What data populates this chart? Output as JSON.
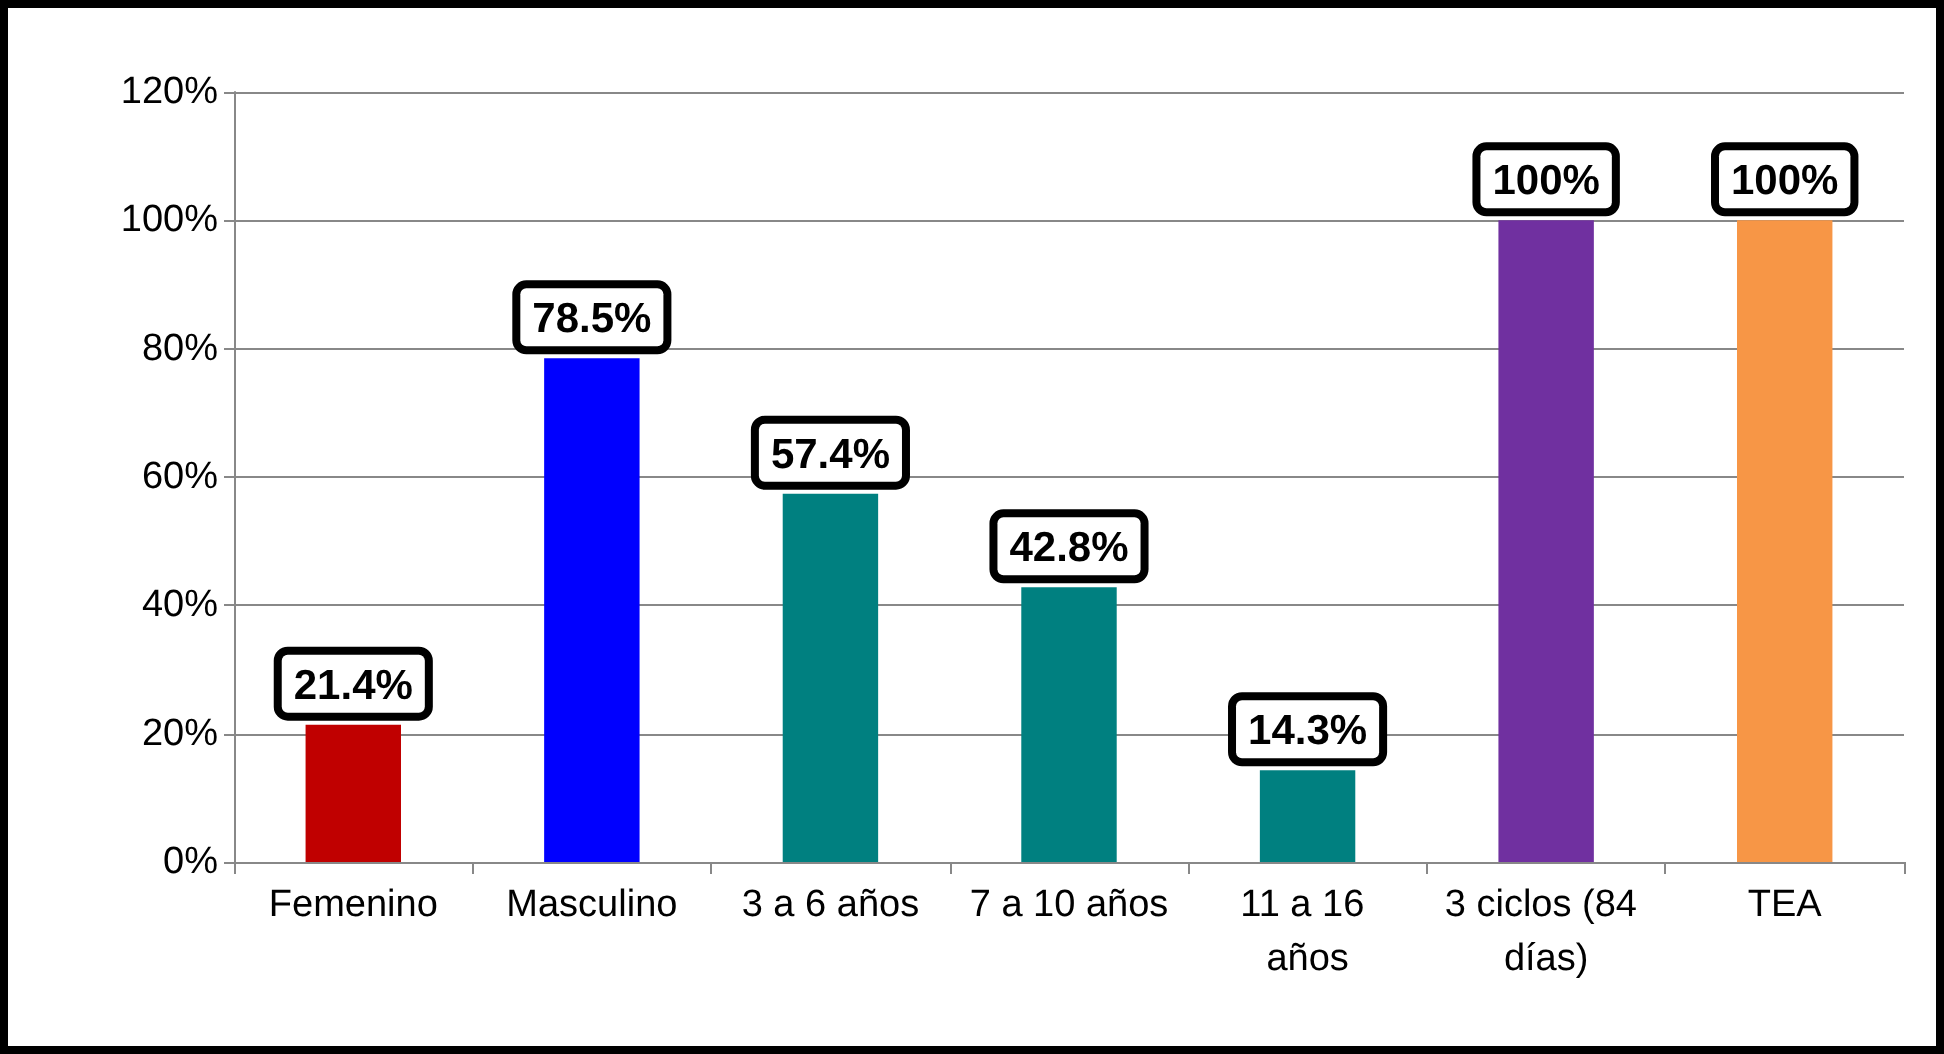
{
  "chart_data": {
    "type": "bar",
    "categories": [
      "Femenino",
      "Masculino",
      "3 a 6 años",
      "7 a 10 años",
      "11 a 16 años",
      "3 ciclos (84 días)",
      "TEA"
    ],
    "values": [
      21.4,
      78.5,
      57.4,
      42.8,
      14.3,
      100,
      100
    ],
    "colors": [
      "#c00000",
      "#0000ff",
      "#008080",
      "#008080",
      "#008080",
      "#7030a0",
      "#f79646"
    ],
    "ylim": [
      0,
      120
    ],
    "yticks": [
      {
        "value": 0,
        "label": "0%"
      },
      {
        "value": 20,
        "label": "20%"
      },
      {
        "value": 40,
        "label": "40%"
      },
      {
        "value": 60,
        "label": "60%"
      },
      {
        "value": 80,
        "label": "80%"
      },
      {
        "value": 100,
        "label": "100%"
      },
      {
        "value": 120,
        "label": "120%"
      }
    ],
    "value_labels": [
      "21.4%",
      "78.5%",
      "57.4%",
      "42.8%",
      "14.3%",
      "100%",
      "100%"
    ],
    "grid": "y"
  }
}
